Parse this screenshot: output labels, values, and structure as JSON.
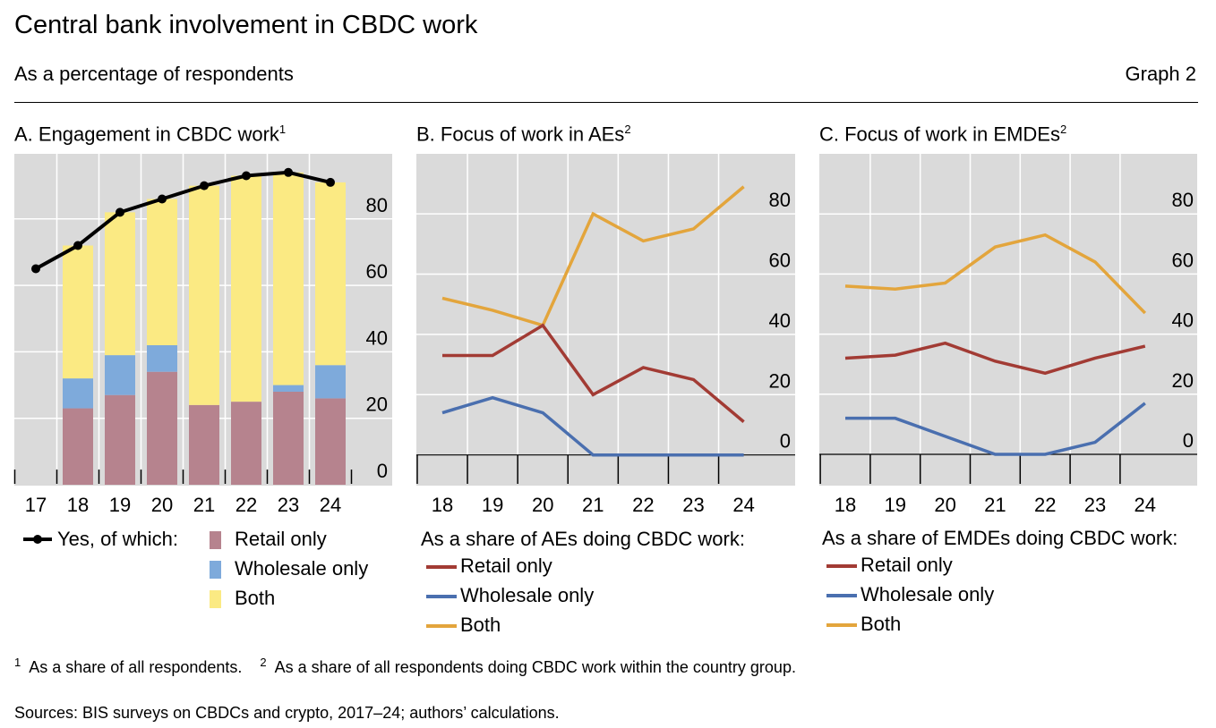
{
  "header": {
    "title": "Central bank involvement in CBDC work",
    "subtitle": "As a percentage of respondents",
    "graph_number": "Graph 2"
  },
  "colors": {
    "background": "#dadada",
    "bar_retail": "#b6838e",
    "bar_wholesale": "#7eaadb",
    "bar_both": "#fbea83",
    "line_yes": "#000000",
    "line_retail": "#a23b34",
    "line_wholesale": "#4a6faf",
    "line_both": "#e3a53c"
  },
  "chart_data": [
    {
      "type": "bar",
      "stacked": true,
      "title": "A. Engagement in CBDC work",
      "title_sup": "1",
      "categories": [
        "17",
        "18",
        "19",
        "20",
        "21",
        "22",
        "23",
        "24"
      ],
      "yticks": [
        0,
        20,
        40,
        60,
        80
      ],
      "ylim": [
        0,
        100
      ],
      "grid": true,
      "series": [
        {
          "name": "Retail only",
          "kind": "bar",
          "values": [
            null,
            23,
            27,
            34,
            24,
            25,
            28,
            26
          ]
        },
        {
          "name": "Wholesale only",
          "kind": "bar",
          "values": [
            null,
            9,
            12,
            8,
            0,
            0,
            2,
            10
          ]
        },
        {
          "name": "Both",
          "kind": "bar",
          "values": [
            null,
            40,
            43,
            44,
            66,
            68,
            64,
            55
          ]
        },
        {
          "name": "Yes, of which:",
          "kind": "line-marker",
          "values": [
            65,
            72,
            82,
            86,
            90,
            93,
            94,
            91
          ]
        }
      ]
    },
    {
      "type": "line",
      "title": "B. Focus of work in AEs",
      "title_sup": "2",
      "legend_title": "As a share of AEs doing CBDC work:",
      "categories": [
        "18",
        "19",
        "20",
        "21",
        "22",
        "23",
        "24"
      ],
      "yticks": [
        0,
        20,
        40,
        60,
        80
      ],
      "ylim": [
        -10,
        100
      ],
      "grid": true,
      "series": [
        {
          "name": "Retail only",
          "values": [
            33,
            33,
            43,
            20,
            29,
            25,
            11
          ]
        },
        {
          "name": "Wholesale only",
          "values": [
            14,
            19,
            14,
            0,
            0,
            0,
            0
          ]
        },
        {
          "name": "Both",
          "values": [
            52,
            48,
            43,
            80,
            71,
            75,
            89
          ]
        }
      ]
    },
    {
      "type": "line",
      "title": "C. Focus of work in EMDEs",
      "title_sup": "2",
      "legend_title": "As a share of EMDEs doing CBDC work:",
      "categories": [
        "18",
        "19",
        "20",
        "21",
        "22",
        "23",
        "24"
      ],
      "yticks": [
        0,
        20,
        40,
        60,
        80
      ],
      "ylim": [
        -10,
        100
      ],
      "grid": true,
      "series": [
        {
          "name": "Retail only",
          "values": [
            32,
            33,
            37,
            31,
            27,
            32,
            36
          ]
        },
        {
          "name": "Wholesale only",
          "values": [
            12,
            12,
            6,
            0,
            0,
            4,
            17
          ]
        },
        {
          "name": "Both",
          "values": [
            56,
            55,
            57,
            69,
            73,
            64,
            47
          ]
        }
      ]
    }
  ],
  "footnotes": {
    "n1": "1",
    "t1": "As a share of all respondents.",
    "n2": "2",
    "t2": "As a share of all respondents doing CBDC work within the country group."
  },
  "sources": "Sources: BIS surveys on CBDCs and crypto, 2017–24; authors’ calculations."
}
